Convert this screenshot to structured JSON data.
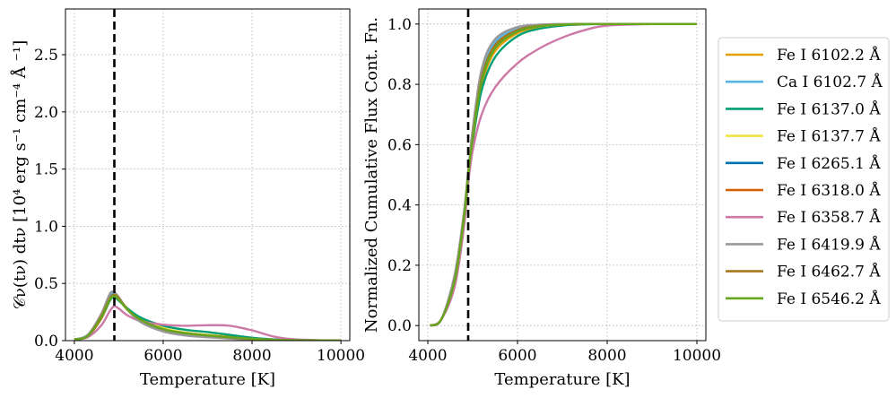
{
  "chart_data": [
    {
      "type": "line",
      "panel": "left",
      "xlabel": "Temperature [K]",
      "ylabel": "𝒞ν(tν) dtν [10⁴ erg s⁻¹ cm⁻⁴ Å ⁻¹]",
      "xlim": [
        3800,
        10200
      ],
      "ylim": [
        0,
        2.9
      ],
      "xticks": [
        4000,
        6000,
        8000,
        10000
      ],
      "yticks": [
        0.0,
        0.5,
        1.0,
        1.5,
        2.0,
        2.5
      ],
      "xtick_labels": [
        "4000",
        "6000",
        "8000",
        "10000"
      ],
      "ytick_labels": [
        "0.0",
        "0.5",
        "1.0",
        "1.5",
        "2.0",
        "2.5"
      ],
      "grid": true,
      "vline_x": 4900,
      "x": [
        4000,
        4300,
        4600,
        4800,
        4900,
        5000,
        5200,
        5500,
        6000,
        6500,
        7000,
        7500,
        8000,
        8500,
        9000,
        10000
      ],
      "series": [
        {
          "name": "Fe I 6102.2 Å",
          "color": "#E69F00",
          "values": [
            0.01,
            0.04,
            0.2,
            0.37,
            0.4,
            0.37,
            0.28,
            0.19,
            0.11,
            0.07,
            0.05,
            0.035,
            0.02,
            0.008,
            0.004,
            0.0
          ]
        },
        {
          "name": "Ca I 6102.7 Å",
          "color": "#56B4E9",
          "values": [
            0.01,
            0.05,
            0.22,
            0.39,
            0.41,
            0.37,
            0.27,
            0.17,
            0.09,
            0.055,
            0.035,
            0.02,
            0.01,
            0.004,
            0.002,
            0.0
          ]
        },
        {
          "name": "Fe I 6137.0 Å",
          "color": "#009E73",
          "values": [
            0.01,
            0.04,
            0.19,
            0.35,
            0.38,
            0.35,
            0.28,
            0.2,
            0.13,
            0.095,
            0.075,
            0.05,
            0.025,
            0.01,
            0.004,
            0.0
          ]
        },
        {
          "name": "Fe I 6137.7 Å",
          "color": "#F0E442",
          "values": [
            0.01,
            0.04,
            0.2,
            0.36,
            0.39,
            0.36,
            0.27,
            0.18,
            0.11,
            0.07,
            0.05,
            0.03,
            0.015,
            0.006,
            0.003,
            0.0
          ]
        },
        {
          "name": "Fe I 6265.1 Å",
          "color": "#0072B2",
          "values": [
            0.01,
            0.04,
            0.2,
            0.37,
            0.4,
            0.36,
            0.27,
            0.18,
            0.1,
            0.065,
            0.045,
            0.03,
            0.015,
            0.006,
            0.003,
            0.0
          ]
        },
        {
          "name": "Fe I 6318.0 Å",
          "color": "#D55E00",
          "values": [
            0.01,
            0.04,
            0.19,
            0.36,
            0.39,
            0.36,
            0.27,
            0.18,
            0.1,
            0.065,
            0.045,
            0.03,
            0.015,
            0.006,
            0.003,
            0.0
          ]
        },
        {
          "name": "Fe I 6358.7 Å",
          "color": "#CC79A7",
          "values": [
            0.01,
            0.03,
            0.13,
            0.26,
            0.3,
            0.28,
            0.22,
            0.17,
            0.14,
            0.13,
            0.135,
            0.13,
            0.09,
            0.035,
            0.01,
            0.0
          ]
        },
        {
          "name": "Fe I 6419.9 Å",
          "color": "#999999",
          "values": [
            0.01,
            0.05,
            0.23,
            0.41,
            0.42,
            0.38,
            0.27,
            0.16,
            0.08,
            0.045,
            0.03,
            0.018,
            0.009,
            0.004,
            0.002,
            0.0
          ]
        },
        {
          "name": "Fe I 6462.7 Å",
          "color": "#A6761D",
          "values": [
            0.01,
            0.04,
            0.21,
            0.37,
            0.4,
            0.37,
            0.27,
            0.18,
            0.1,
            0.065,
            0.045,
            0.028,
            0.014,
            0.006,
            0.003,
            0.0
          ]
        },
        {
          "name": "Fe I 6546.2 Å",
          "color": "#66A61E",
          "values": [
            0.01,
            0.04,
            0.2,
            0.36,
            0.39,
            0.36,
            0.27,
            0.18,
            0.1,
            0.065,
            0.045,
            0.03,
            0.015,
            0.006,
            0.003,
            0.0
          ]
        }
      ]
    },
    {
      "type": "line",
      "panel": "right",
      "xlabel": "Temperature [K]",
      "ylabel": "Normalized Cumulative Flux Cont. Fn.",
      "xlim": [
        3800,
        10200
      ],
      "ylim": [
        -0.05,
        1.05
      ],
      "xticks": [
        4000,
        6000,
        8000,
        10000
      ],
      "yticks": [
        0.0,
        0.2,
        0.4,
        0.6,
        0.8,
        1.0
      ],
      "xtick_labels": [
        "4000",
        "6000",
        "8000",
        "10000"
      ],
      "ytick_labels": [
        "0.0",
        "0.2",
        "0.4",
        "0.6",
        "0.8",
        "1.0"
      ],
      "grid": true,
      "vline_x": 4900,
      "x": [
        4050,
        4300,
        4600,
        4800,
        4900,
        5000,
        5200,
        5500,
        6000,
        6500,
        7000,
        7500,
        8000,
        9000,
        10000
      ],
      "series": [
        {
          "name": "Fe I 6102.2 Å",
          "color": "#E69F00",
          "values": [
            0.0,
            0.02,
            0.15,
            0.35,
            0.5,
            0.62,
            0.8,
            0.91,
            0.97,
            0.99,
            0.997,
            1.0,
            1.0,
            1.0,
            1.0
          ]
        },
        {
          "name": "Ca I 6102.7 Å",
          "color": "#56B4E9",
          "values": [
            0.0,
            0.02,
            0.16,
            0.36,
            0.51,
            0.64,
            0.83,
            0.94,
            0.985,
            0.996,
            0.999,
            1.0,
            1.0,
            1.0,
            1.0
          ]
        },
        {
          "name": "Fe I 6137.0 Å",
          "color": "#009E73",
          "values": [
            0.0,
            0.02,
            0.15,
            0.34,
            0.5,
            0.61,
            0.78,
            0.89,
            0.96,
            0.985,
            0.995,
            0.999,
            1.0,
            1.0,
            1.0
          ]
        },
        {
          "name": "Fe I 6137.7 Å",
          "color": "#F0E442",
          "values": [
            0.0,
            0.02,
            0.15,
            0.35,
            0.5,
            0.62,
            0.81,
            0.92,
            0.975,
            0.992,
            0.998,
            1.0,
            1.0,
            1.0,
            1.0
          ]
        },
        {
          "name": "Fe I 6265.1 Å",
          "color": "#0072B2",
          "values": [
            0.0,
            0.02,
            0.15,
            0.35,
            0.5,
            0.62,
            0.81,
            0.92,
            0.975,
            0.993,
            0.998,
            1.0,
            1.0,
            1.0,
            1.0
          ]
        },
        {
          "name": "Fe I 6318.0 Å",
          "color": "#D55E00",
          "values": [
            0.0,
            0.02,
            0.15,
            0.35,
            0.5,
            0.62,
            0.81,
            0.92,
            0.975,
            0.993,
            0.998,
            1.0,
            1.0,
            1.0,
            1.0
          ]
        },
        {
          "name": "Fe I 6358.7 Å",
          "color": "#CC79A7",
          "values": [
            0.0,
            0.02,
            0.13,
            0.32,
            0.47,
            0.58,
            0.7,
            0.79,
            0.87,
            0.92,
            0.955,
            0.98,
            0.995,
            1.0,
            1.0
          ]
        },
        {
          "name": "Fe I 6419.9 Å",
          "color": "#999999",
          "values": [
            0.0,
            0.02,
            0.17,
            0.37,
            0.51,
            0.65,
            0.85,
            0.95,
            0.99,
            0.998,
            1.0,
            1.0,
            1.0,
            1.0,
            1.0
          ]
        },
        {
          "name": "Fe I 6462.7 Å",
          "color": "#A6761D",
          "values": [
            0.0,
            0.02,
            0.15,
            0.35,
            0.5,
            0.62,
            0.82,
            0.93,
            0.98,
            0.994,
            0.998,
            1.0,
            1.0,
            1.0,
            1.0
          ]
        },
        {
          "name": "Fe I 6546.2 Å",
          "color": "#66A61E",
          "values": [
            0.0,
            0.02,
            0.15,
            0.35,
            0.5,
            0.62,
            0.81,
            0.92,
            0.975,
            0.993,
            0.998,
            1.0,
            1.0,
            1.0,
            1.0
          ]
        }
      ]
    }
  ],
  "legend": {
    "placement": "right",
    "entries": [
      "Fe I 6102.2 Å",
      "Ca I 6102.7 Å",
      "Fe I 6137.0 Å",
      "Fe I 6137.7 Å",
      "Fe I 6265.1 Å",
      "Fe I 6318.0 Å",
      "Fe I 6358.7 Å",
      "Fe I 6419.9 Å",
      "Fe I 6462.7 Å",
      "Fe I 6546.2 Å"
    ]
  }
}
